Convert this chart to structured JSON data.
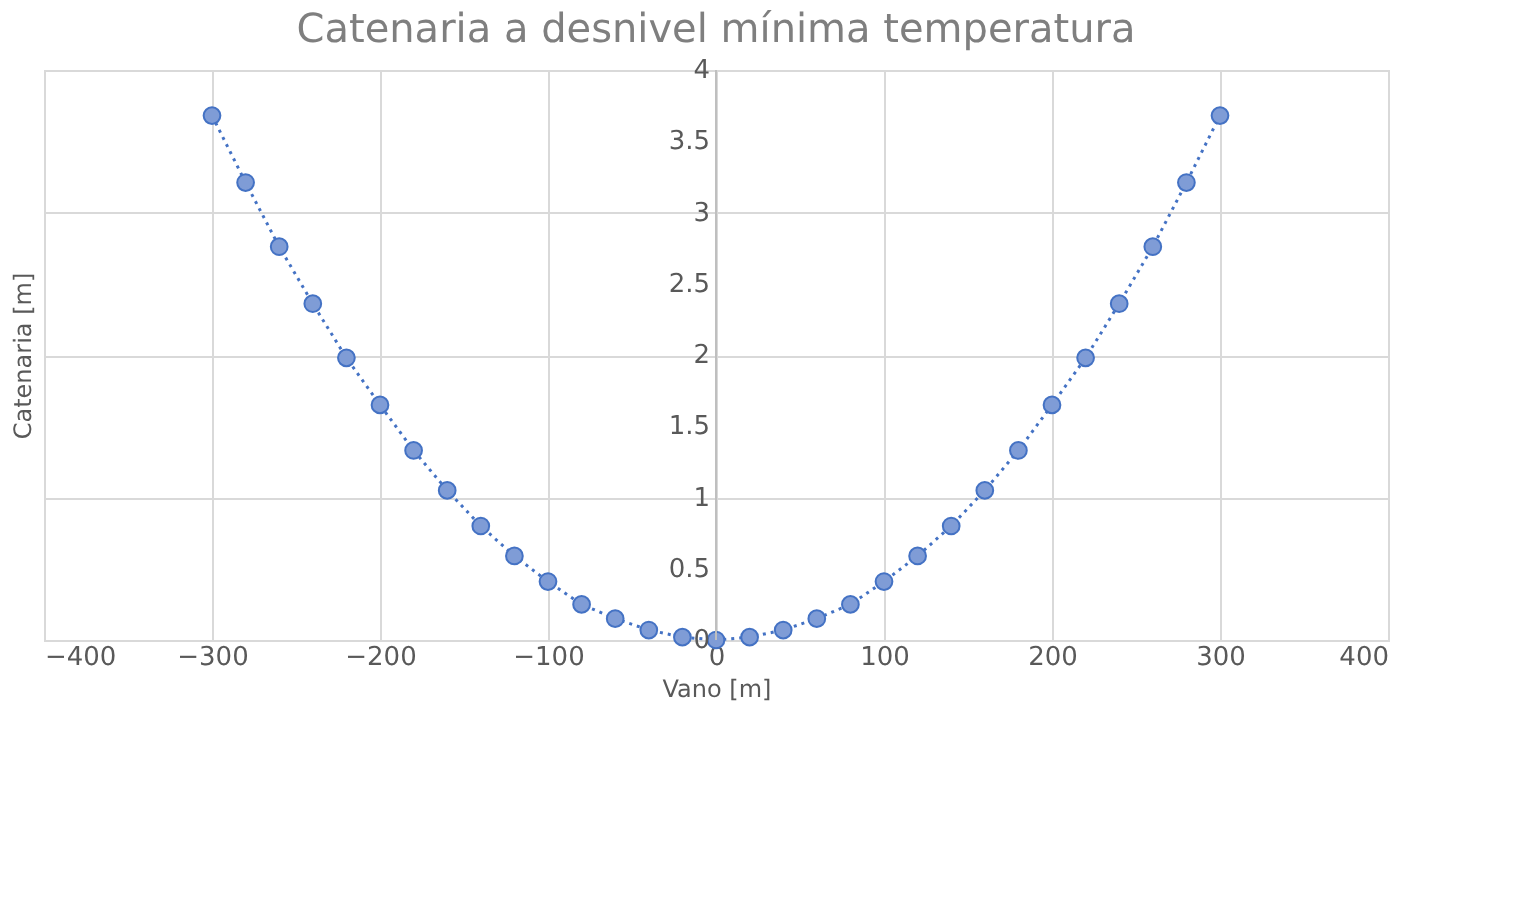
{
  "chart_data": {
    "type": "line",
    "title": "Catenaria  a desnivel  mínima  temperatura",
    "xlabel": "Vano [m]",
    "ylabel": "Catenaria [m]",
    "x": [
      -300,
      -280,
      -260,
      -240,
      -220,
      -200,
      -180,
      -160,
      -140,
      -120,
      -100,
      -80,
      -60,
      -40,
      -20,
      0,
      20,
      40,
      60,
      80,
      100,
      120,
      140,
      160,
      180,
      200,
      220,
      240,
      260,
      280,
      300
    ],
    "series": [
      {
        "color": "#4472c4",
        "values": [
          3.68,
          3.21,
          2.76,
          2.36,
          1.98,
          1.65,
          1.33,
          1.05,
          0.8,
          0.59,
          0.41,
          0.25,
          0.15,
          0.07,
          0.02,
          0,
          0.02,
          0.07,
          0.15,
          0.25,
          0.41,
          0.59,
          0.8,
          1.05,
          1.33,
          1.65,
          1.98,
          2.36,
          2.76,
          3.21,
          3.68
        ]
      }
    ],
    "xlim": [
      -400,
      400
    ],
    "xticks": [
      -400,
      -300,
      -200,
      -100,
      0,
      100,
      200,
      300,
      400
    ],
    "ylim": [
      0,
      4
    ],
    "yticks": [
      0,
      0.5,
      1,
      1.5,
      2,
      2.5,
      3,
      3.5,
      4
    ],
    "grid": true,
    "marker": "circle",
    "line_style": "dotted"
  }
}
